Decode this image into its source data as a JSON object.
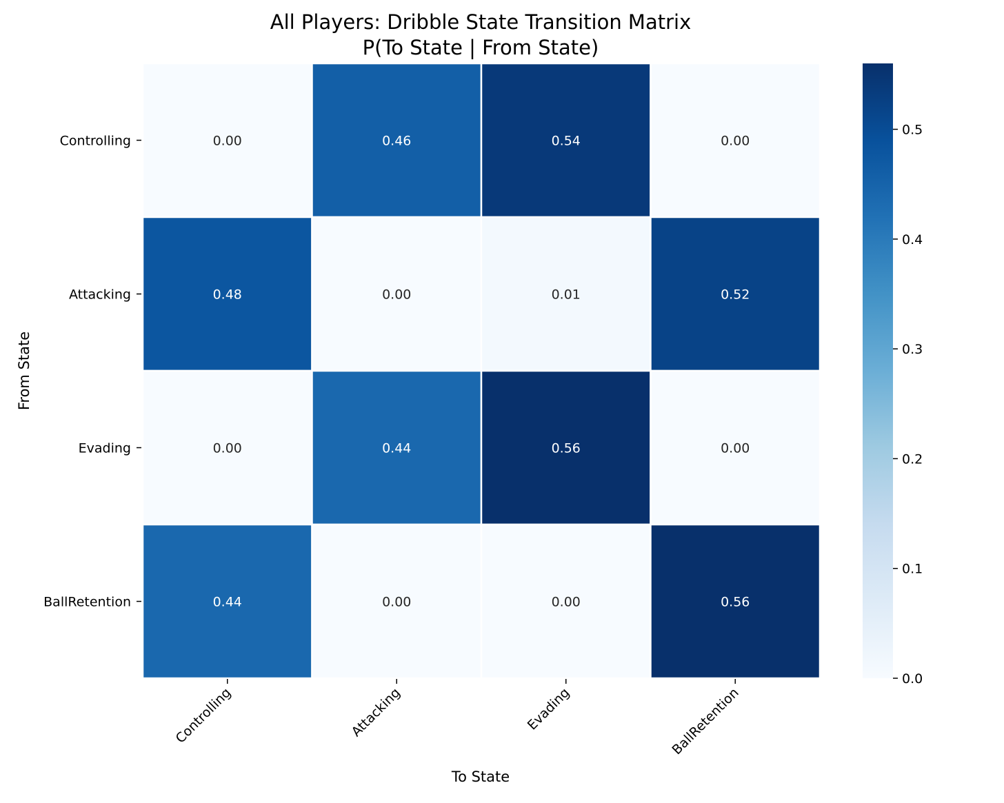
{
  "chart_data": {
    "type": "heatmap",
    "title": "All Players: Dribble State Transition Matrix",
    "subtitle": "P(To State | From State)",
    "xlabel": "To State",
    "ylabel": "From State",
    "x_categories": [
      "Controlling",
      "Attacking",
      "Evading",
      "BallRetention"
    ],
    "y_categories": [
      "Controlling",
      "Attacking",
      "Evading",
      "BallRetention"
    ],
    "values": [
      [
        0.0,
        0.46,
        0.54,
        0.0
      ],
      [
        0.48,
        0.0,
        0.01,
        0.52
      ],
      [
        0.0,
        0.44,
        0.56,
        0.0
      ],
      [
        0.44,
        0.0,
        0.0,
        0.56
      ]
    ],
    "value_format": "2 decimals",
    "colormap": "Blues",
    "colorbar": {
      "range": [
        0,
        0.56
      ],
      "ticks": [
        0.0,
        0.1,
        0.2,
        0.3,
        0.4,
        0.5
      ],
      "tick_labels": [
        "0.0",
        "0.1",
        "0.2",
        "0.3",
        "0.4",
        "0.5"
      ]
    }
  }
}
